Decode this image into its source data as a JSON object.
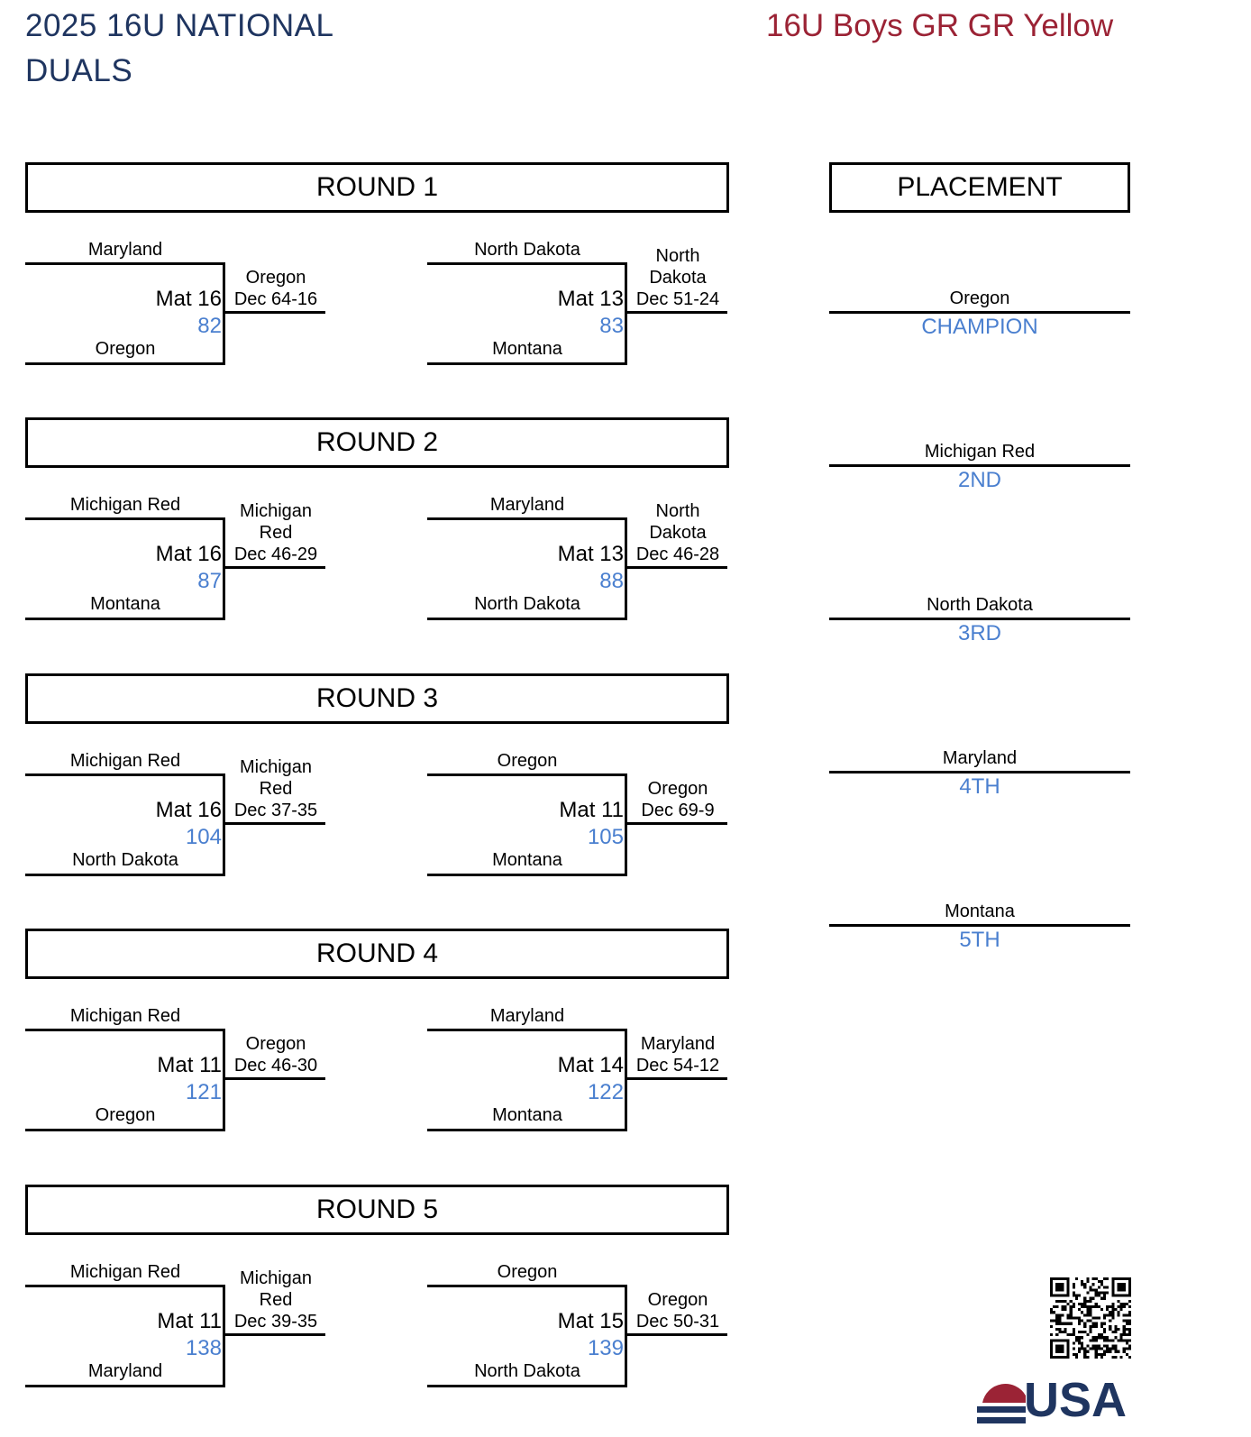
{
  "header": {
    "event_title": "2025 16U NATIONAL DUALS",
    "division_title": "16U Boys GR GR Yellow"
  },
  "rounds": [
    {
      "label": "ROUND 1",
      "matches": [
        {
          "top": "Maryland",
          "bottom": "Oregon",
          "mat": "Mat 16",
          "bout": "82",
          "result": "Oregon\nDec 64-16"
        },
        {
          "top": "North Dakota",
          "bottom": "Montana",
          "mat": "Mat 13",
          "bout": "83",
          "result": "North\nDakota\nDec 51-24"
        }
      ]
    },
    {
      "label": "ROUND 2",
      "matches": [
        {
          "top": "Michigan Red",
          "bottom": "Montana",
          "mat": "Mat 16",
          "bout": "87",
          "result": "Michigan\nRed\nDec 46-29"
        },
        {
          "top": "Maryland",
          "bottom": "North Dakota",
          "mat": "Mat 13",
          "bout": "88",
          "result": "North\nDakota\nDec 46-28"
        }
      ]
    },
    {
      "label": "ROUND 3",
      "matches": [
        {
          "top": "Michigan Red",
          "bottom": "North Dakota",
          "mat": "Mat 16",
          "bout": "104",
          "result": "Michigan\nRed\nDec 37-35"
        },
        {
          "top": "Oregon",
          "bottom": "Montana",
          "mat": "Mat 11",
          "bout": "105",
          "result": "Oregon\nDec 69-9"
        }
      ]
    },
    {
      "label": "ROUND 4",
      "matches": [
        {
          "top": "Michigan Red",
          "bottom": "Oregon",
          "mat": "Mat 11",
          "bout": "121",
          "result": "Oregon\nDec 46-30"
        },
        {
          "top": "Maryland",
          "bottom": "Montana",
          "mat": "Mat 14",
          "bout": "122",
          "result": "Maryland\nDec 54-12"
        }
      ]
    },
    {
      "label": "ROUND 5",
      "matches": [
        {
          "top": "Michigan Red",
          "bottom": "Maryland",
          "mat": "Mat 11",
          "bout": "138",
          "result": "Michigan\nRed\nDec 39-35"
        },
        {
          "top": "Oregon",
          "bottom": "North Dakota",
          "mat": "Mat 15",
          "bout": "139",
          "result": "Oregon\nDec 50-31"
        }
      ]
    }
  ],
  "placement": {
    "label": "PLACEMENT",
    "places": [
      {
        "team": "Oregon",
        "label": "CHAMPION"
      },
      {
        "team": "Michigan Red",
        "label": "2ND"
      },
      {
        "team": "North Dakota",
        "label": "3RD"
      },
      {
        "team": "Maryland",
        "label": "4TH"
      },
      {
        "team": "Montana",
        "label": "5TH"
      }
    ]
  },
  "logo": {
    "text": "USA"
  },
  "colors": {
    "title": "#1f3560",
    "division": "#9b2335",
    "bout": "#4a7fcf"
  }
}
